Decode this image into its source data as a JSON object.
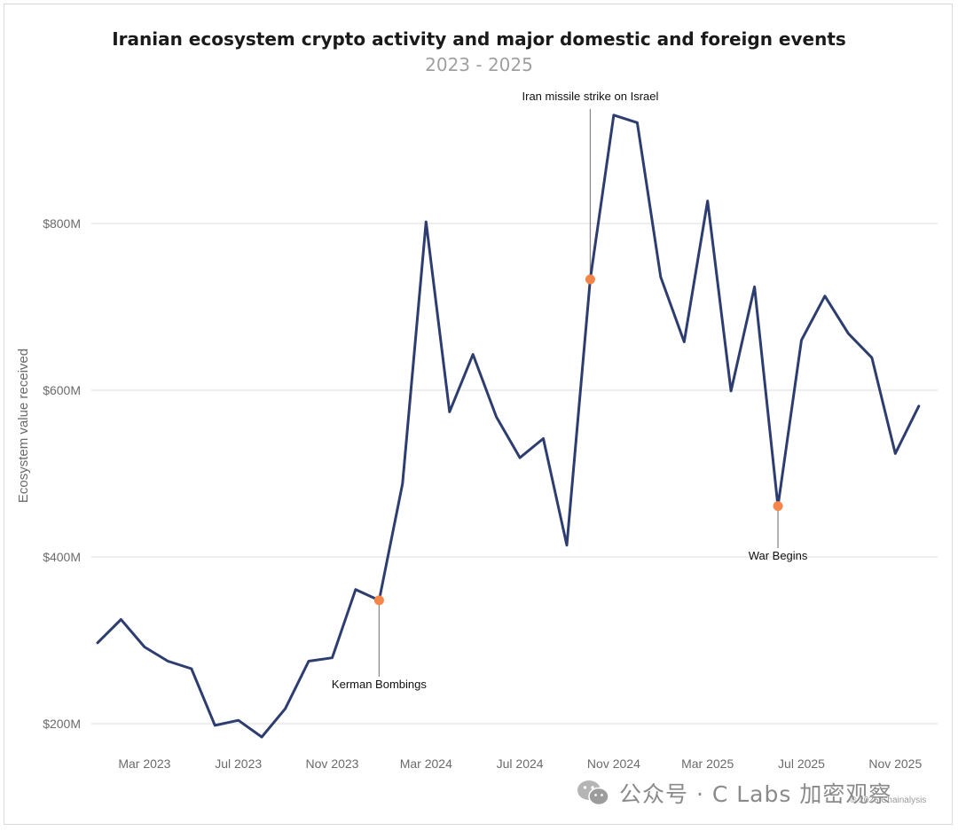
{
  "chart_data": {
    "type": "line",
    "title": "Iranian ecosystem crypto activity and major domestic and foreign events",
    "subtitle": "2023 - 2025",
    "ylabel": "Ecosystem value received",
    "xlabel": "",
    "ylim": [
      150,
      950
    ],
    "y_ticks": [
      {
        "value": 200,
        "label": "$200M"
      },
      {
        "value": 400,
        "label": "$400M"
      },
      {
        "value": 600,
        "label": "$600M"
      },
      {
        "value": 800,
        "label": "$800M"
      }
    ],
    "x_ticks": [
      {
        "date": "2023-03",
        "label": "Mar 2023"
      },
      {
        "date": "2023-07",
        "label": "Jul 2023"
      },
      {
        "date": "2023-11",
        "label": "Nov 2023"
      },
      {
        "date": "2024-03",
        "label": "Mar 2024"
      },
      {
        "date": "2024-07",
        "label": "Jul 2024"
      },
      {
        "date": "2024-11",
        "label": "Nov 2024"
      },
      {
        "date": "2025-03",
        "label": "Mar 2025"
      },
      {
        "date": "2025-07",
        "label": "Jul 2025"
      },
      {
        "date": "2025-11",
        "label": "Nov 2025"
      }
    ],
    "grid": true,
    "series": [
      {
        "color": "#2e3d6f",
        "points": [
          {
            "x": "2023-01",
            "y": 297
          },
          {
            "x": "2023-02",
            "y": 325
          },
          {
            "x": "2023-03",
            "y": 292
          },
          {
            "x": "2023-04",
            "y": 275
          },
          {
            "x": "2023-05",
            "y": 266
          },
          {
            "x": "2023-06",
            "y": 198
          },
          {
            "x": "2023-07",
            "y": 204
          },
          {
            "x": "2023-08",
            "y": 184
          },
          {
            "x": "2023-09",
            "y": 218
          },
          {
            "x": "2023-10",
            "y": 275
          },
          {
            "x": "2023-11",
            "y": 279
          },
          {
            "x": "2023-12",
            "y": 361
          },
          {
            "x": "2024-01",
            "y": 348
          },
          {
            "x": "2024-02",
            "y": 488
          },
          {
            "x": "2024-03",
            "y": 802
          },
          {
            "x": "2024-04",
            "y": 574
          },
          {
            "x": "2024-05",
            "y": 643
          },
          {
            "x": "2024-06",
            "y": 568
          },
          {
            "x": "2024-07",
            "y": 519
          },
          {
            "x": "2024-08",
            "y": 542
          },
          {
            "x": "2024-09",
            "y": 414
          },
          {
            "x": "2024-10",
            "y": 733
          },
          {
            "x": "2024-11",
            "y": 930
          },
          {
            "x": "2024-12",
            "y": 921
          },
          {
            "x": "2025-01",
            "y": 736
          },
          {
            "x": "2025-02",
            "y": 658
          },
          {
            "x": "2025-03",
            "y": 827
          },
          {
            "x": "2025-04",
            "y": 599
          },
          {
            "x": "2025-05",
            "y": 724
          },
          {
            "x": "2025-06",
            "y": 461
          },
          {
            "x": "2025-07",
            "y": 660
          },
          {
            "x": "2025-08",
            "y": 713
          },
          {
            "x": "2025-09",
            "y": 668
          },
          {
            "x": "2025-10",
            "y": 639
          },
          {
            "x": "2025-11",
            "y": 524
          },
          {
            "x": "2025-12",
            "y": 581
          }
        ]
      }
    ],
    "annotations": [
      {
        "x": "2024-01",
        "y": 348,
        "label": "Kerman Bombings",
        "position": "below",
        "marker_color": "#f4864a"
      },
      {
        "x": "2024-10",
        "y": 733,
        "label": "Iran missile strike on Israel",
        "position": "above",
        "marker_color": "#f4864a"
      },
      {
        "x": "2025-06",
        "y": 461,
        "label": "War Begins",
        "position": "below",
        "marker_color": "#f4864a"
      }
    ]
  },
  "watermark": {
    "text": "公众号 · C Labs 加密观察",
    "icon": "wechat-icon"
  },
  "credit": "© 2026 Chainalysis"
}
